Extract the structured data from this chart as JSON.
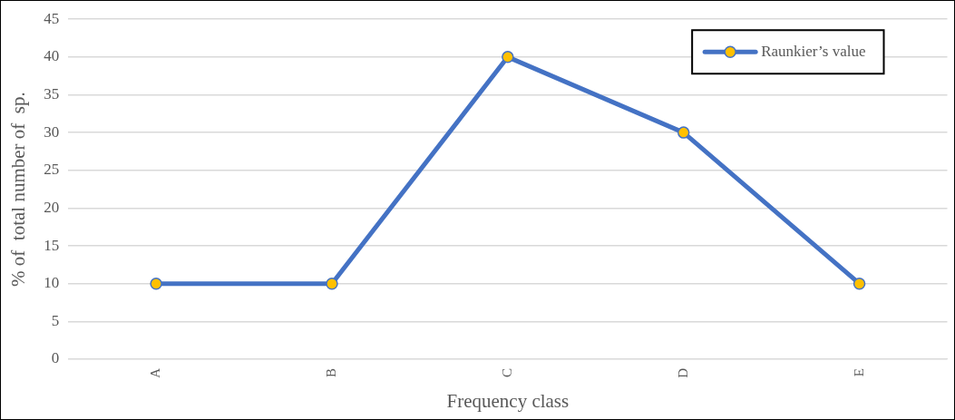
{
  "chart_data": {
    "type": "line",
    "xlabel": "Frequency class",
    "ylabel": "% of  total number of  sp.",
    "categories": [
      "A",
      "B",
      "C",
      "D",
      "E"
    ],
    "series": [
      {
        "name": "Raunkier’s value",
        "color": "#4472c4",
        "colors": [
          "#ffc000",
          "#ffc000",
          "#ffc000",
          "#ffc000",
          "#ffc000"
        ],
        "values": [
          10,
          10,
          40,
          30,
          10
        ]
      }
    ],
    "ylim": [
      0,
      45
    ],
    "yticks": [
      0,
      5,
      10,
      15,
      20,
      25,
      30,
      35,
      40,
      45
    ],
    "grid": "y",
    "legend": "top right",
    "marker": "circle",
    "line_style": "solid"
  }
}
